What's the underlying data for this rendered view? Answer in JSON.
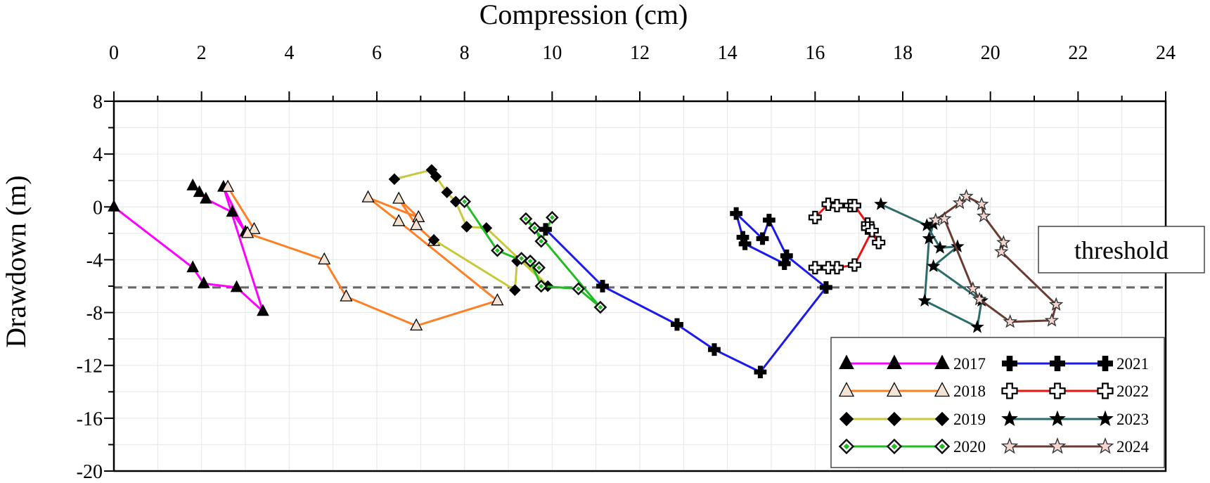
{
  "chart_data": {
    "type": "line",
    "title": "",
    "xlabel": "Compression (cm)",
    "ylabel": "Drawdown (m)",
    "xlim": [
      0,
      24
    ],
    "ylim": [
      -20,
      8
    ],
    "xticks": [
      0,
      2,
      4,
      6,
      8,
      10,
      12,
      14,
      16,
      18,
      20,
      22,
      24
    ],
    "yticks": [
      8,
      4,
      0,
      -4,
      -8,
      -12,
      -16,
      -20
    ],
    "grid": true,
    "legend_position": "bottom-right",
    "threshold": {
      "label": "threshold",
      "value": -6.1,
      "color": "#666666"
    },
    "series": [
      {
        "name": "2017",
        "color": "#ff00ff",
        "marker": "triangle",
        "filled": true,
        "x": [
          0,
          1.8,
          2.05,
          2.8,
          3.4,
          2.5,
          3.0,
          2.7,
          2.1,
          1.95,
          1.8
        ],
        "y": [
          0,
          -4.6,
          -5.8,
          -6.1,
          -7.9,
          1.5,
          -1.9,
          -0.4,
          0.6,
          1.1,
          1.6
        ]
      },
      {
        "name": "2018",
        "color": "#ff7f27",
        "marker": "triangle",
        "filled": false,
        "x": [
          2.6,
          3.2,
          3.05,
          4.8,
          5.3,
          6.9,
          8.75,
          6.5,
          5.8,
          6.95,
          6.5,
          6.9,
          7.3
        ],
        "y": [
          1.5,
          -1.7,
          -2.0,
          -4.0,
          -6.8,
          -9.0,
          -7.1,
          -1.1,
          0.7,
          -0.8,
          0.6,
          -1.4,
          -2.6
        ]
      },
      {
        "name": "2019",
        "color": "#c8c83c",
        "marker": "diamond",
        "filled": true,
        "x": [
          6.4,
          7.25,
          7.35,
          7.6,
          7.8,
          8.05,
          8.5,
          9.9,
          9.3,
          9.2,
          9.15,
          7.3
        ],
        "y": [
          2.1,
          2.8,
          2.3,
          1.1,
          0.4,
          -1.5,
          -1.6,
          -6.0,
          -3.9,
          -4.1,
          -6.3,
          -2.5
        ]
      },
      {
        "name": "2020",
        "color": "#22bb22",
        "marker": "diamond",
        "filled": false,
        "x": [
          8.0,
          8.75,
          9.7,
          9.3,
          9.5,
          9.75,
          10.6,
          11.1,
          9.4,
          9.6,
          9.75,
          10.0
        ],
        "y": [
          0.4,
          -3.3,
          -4.6,
          -3.9,
          -4.1,
          -6.0,
          -6.2,
          -7.6,
          -0.9,
          -1.6,
          -2.6,
          -0.8
        ]
      },
      {
        "name": "2021",
        "color": "#1a1aee",
        "marker": "plus",
        "filled": true,
        "x": [
          9.85,
          11.15,
          12.85,
          13.7,
          14.75,
          16.25,
          15.35,
          14.95,
          14.8,
          14.2,
          14.35,
          14.4,
          15.3
        ],
        "y": [
          -1.7,
          -6.0,
          -8.9,
          -10.8,
          -12.5,
          -6.1,
          -3.7,
          -1.0,
          -2.4,
          -0.5,
          -2.3,
          -2.8,
          -4.3
        ]
      },
      {
        "name": "2022",
        "color": "#ee1111",
        "marker": "plus",
        "filled": false,
        "x": [
          16.0,
          16.3,
          16.5,
          16.8,
          16.9,
          17.2,
          17.45,
          17.2,
          17.3,
          16.9,
          16.5,
          16.3,
          16.0
        ],
        "y": [
          -0.8,
          0.2,
          0.1,
          0.1,
          0.1,
          -1.3,
          -2.7,
          -1.6,
          -1.8,
          -4.4,
          -4.6,
          -4.6,
          -4.6
        ]
      },
      {
        "name": "2023",
        "color": "#2d6b6b",
        "marker": "star",
        "filled": true,
        "x": [
          17.5,
          18.55,
          18.85,
          19.25,
          18.7,
          19.8,
          19.7,
          18.5,
          18.6,
          18.7
        ],
        "y": [
          0.2,
          -1.4,
          -3.1,
          -3.0,
          -4.5,
          -7.1,
          -9.1,
          -7.1,
          -2.4,
          -1.3
        ]
      },
      {
        "name": "2024",
        "color": "#6b3a30",
        "marker": "star",
        "filled": false,
        "x": [
          18.75,
          19.3,
          19.45,
          19.8,
          19.85,
          20.3,
          20.25,
          21.5,
          21.4,
          20.45,
          19.75,
          19.6,
          18.95
        ],
        "y": [
          -1.0,
          0.3,
          0.8,
          0.2,
          -0.7,
          -2.7,
          -3.4,
          -7.4,
          -8.6,
          -8.7,
          -7.0,
          -6.2,
          -0.9
        ]
      }
    ]
  }
}
